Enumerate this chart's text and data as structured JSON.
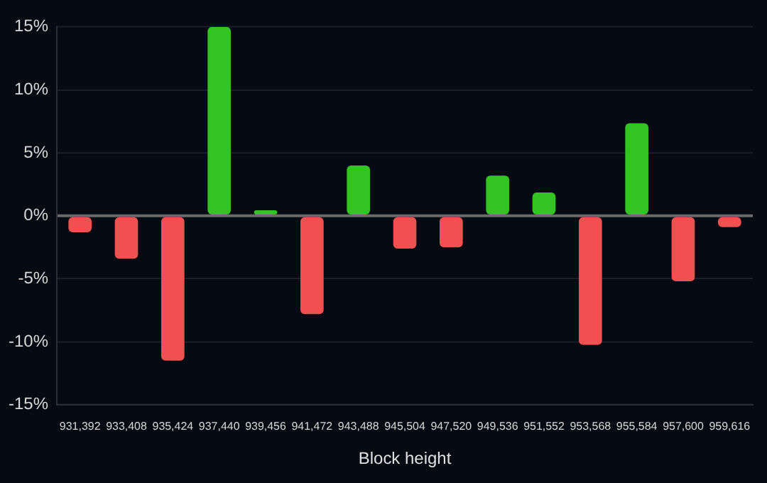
{
  "chart_data": {
    "type": "bar",
    "xlabel": "Block height",
    "categories": [
      "931,392",
      "933,408",
      "935,424",
      "937,440",
      "939,456",
      "941,472",
      "943,488",
      "945,504",
      "947,520",
      "949,536",
      "951,552",
      "953,568",
      "955,584",
      "957,600",
      "959,616"
    ],
    "values": [
      -1.3,
      -3.4,
      -11.5,
      15,
      0.45,
      -7.8,
      4.0,
      -2.6,
      -2.5,
      3.2,
      1.85,
      -10.25,
      7.35,
      -5.2,
      -0.9
    ],
    "colors": [
      "#f15050",
      "#f15050",
      "#f15050",
      "#33c423",
      "#33c423",
      "#f15050",
      "#33c423",
      "#f15050",
      "#f15050",
      "#33c423",
      "#33c423",
      "#f15050",
      "#33c423",
      "#f15050",
      "#f15050"
    ],
    "ylim": [
      -15,
      15
    ],
    "yticks": [
      {
        "value": -15,
        "label": "-15%"
      },
      {
        "value": -10,
        "label": "-10%"
      },
      {
        "value": -5,
        "label": "-5%"
      },
      {
        "value": 0,
        "label": "0%"
      },
      {
        "value": 5,
        "label": "5%"
      },
      {
        "value": 10,
        "label": "10%"
      },
      {
        "value": 15,
        "label": "15%"
      }
    ],
    "grid": "y",
    "legend": false
  }
}
